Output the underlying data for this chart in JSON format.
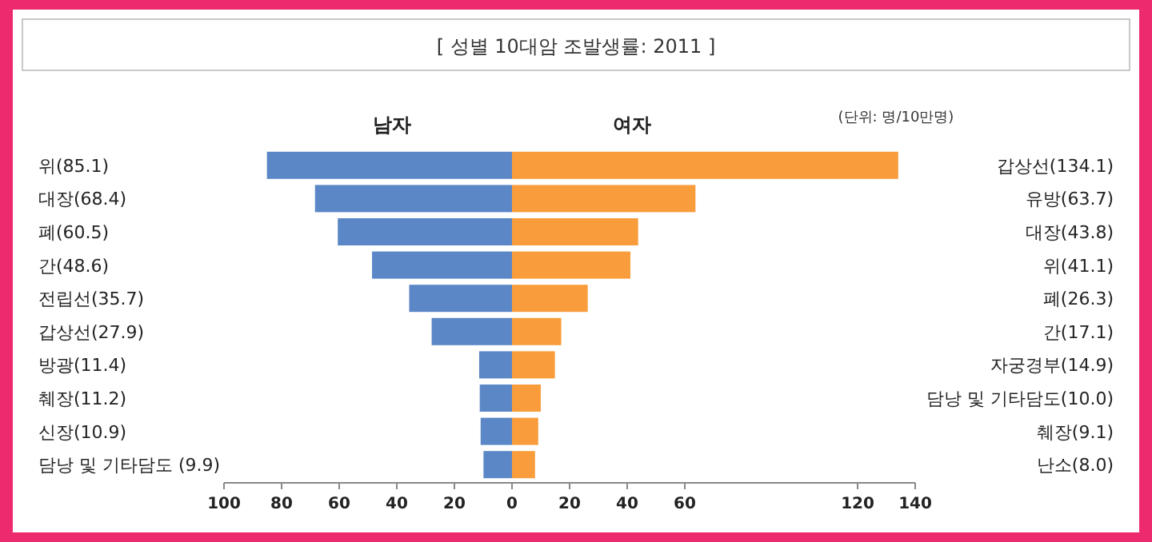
{
  "chart_data": [
    {
      "type": "bar",
      "orientation": "horizontal",
      "title": "[ 성별 10대암 조발생률: 2011 ]",
      "subtitle": "남자",
      "color": "#5b87c7",
      "categories": [
        "위(85.1)",
        "대장(68.4)",
        "폐(60.5)",
        "간(48.6)",
        "전립선(35.7)",
        "갑상선(27.9)",
        "방광(11.4)",
        "췌장(11.2)",
        "신장(10.9)",
        "담낭 및 기타담도 (9.9)"
      ],
      "values": [
        85.1,
        68.4,
        60.5,
        48.6,
        35.7,
        27.9,
        11.4,
        11.2,
        10.9,
        9.9
      ],
      "xlim": [
        100,
        0
      ],
      "xticks": [
        100,
        80,
        60,
        40,
        20
      ]
    },
    {
      "type": "bar",
      "orientation": "horizontal",
      "subtitle": "여자",
      "color": "#f99d3c",
      "annotations": [
        "(단위: 명/10만명)"
      ],
      "categories": [
        "갑상선(134.1)",
        "유방(63.7)",
        "대장(43.8)",
        "위(41.1)",
        "폐(26.3)",
        "간(17.1)",
        "자궁경부(14.9)",
        "담낭 및 기타담도(10.0)",
        "췌장(9.1)",
        "난소(8.0)"
      ],
      "values": [
        134.1,
        63.7,
        43.8,
        41.1,
        26.3,
        17.1,
        14.9,
        10.0,
        9.1,
        8.0
      ],
      "xlim": [
        0,
        140
      ],
      "xticks": [
        0,
        20,
        40,
        60,
        120,
        140
      ]
    }
  ]
}
